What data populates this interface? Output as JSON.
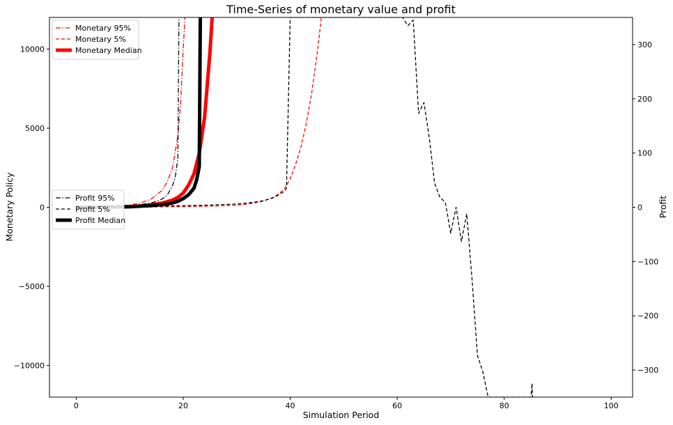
{
  "chart_data": {
    "type": "line",
    "title": "Time-Series of monetary value and profit",
    "xlabel": "Simulation Period",
    "ylabel_left": "Monetary Policy",
    "ylabel_right": "Profit",
    "xlim": [
      -5,
      104
    ],
    "ylim_left": [
      -12000,
      12000
    ],
    "ylim_right": [
      -350,
      350
    ],
    "x_ticks": [
      0,
      20,
      40,
      60,
      80,
      100
    ],
    "y_left_ticks": [
      -10000,
      -5000,
      0,
      5000,
      10000
    ],
    "y_left_tick_labels": [
      "−10000",
      "−5000",
      "0",
      "5000",
      "10000"
    ],
    "y_right_ticks": [
      -300,
      -200,
      -100,
      0,
      100,
      200,
      300
    ],
    "y_right_tick_labels": [
      "−300",
      "−200",
      "−100",
      "0",
      "100",
      "200",
      "300"
    ],
    "grid": false,
    "legend_monetary_placement": "top-left",
    "legend_profit_placement": "center-left",
    "series": [
      {
        "name": "Monetary 95%",
        "axis": "left",
        "color": "#ff0000",
        "dash": "dashdot",
        "width": 1.3,
        "x": [
          0,
          5,
          8,
          10,
          12,
          14,
          16,
          17,
          18,
          19,
          19.5,
          20,
          20.5
        ],
        "y": [
          0,
          30,
          80,
          150,
          270,
          520,
          1050,
          1600,
          2500,
          4500,
          6500,
          10000,
          13000
        ]
      },
      {
        "name": "Monetary 5%",
        "axis": "left",
        "color": "#ff0000",
        "dash": "dashed",
        "width": 1.3,
        "x": [
          0,
          10,
          20,
          25,
          30,
          33,
          35,
          37,
          38,
          39,
          40,
          41,
          42,
          43,
          44,
          45,
          46
        ],
        "y": [
          0,
          10,
          40,
          70,
          130,
          250,
          400,
          650,
          880,
          1200,
          1800,
          2700,
          3800,
          5300,
          7200,
          9600,
          12500
        ]
      },
      {
        "name": "Monetary Median",
        "axis": "left",
        "color": "#ff0000",
        "dash": "solid",
        "width": 5,
        "x": [
          0,
          5,
          10,
          12,
          14,
          16,
          18,
          19,
          20,
          21,
          22,
          23,
          24,
          25,
          25.5
        ],
        "y": [
          0,
          10,
          40,
          80,
          150,
          260,
          450,
          620,
          900,
          1400,
          2100,
          3400,
          5700,
          9800,
          12500
        ]
      },
      {
        "name": "Profit 95%",
        "axis": "right",
        "color": "#000000",
        "dash": "dashdot",
        "width": 1.3,
        "x": [
          0,
          5,
          8,
          10,
          12,
          14,
          15,
          16,
          17,
          18,
          18.5,
          19,
          19.2
        ],
        "y": [
          0,
          1,
          2,
          3,
          5,
          8,
          11,
          15,
          22,
          40,
          55,
          90,
          350
        ]
      },
      {
        "name": "Profit 5%",
        "axis": "right",
        "color": "#000000",
        "dash": "dashed",
        "width": 1.3,
        "x": [
          0,
          10,
          20,
          25,
          30,
          33,
          35,
          37,
          38,
          39,
          39.3,
          40,
          61,
          62,
          63,
          64,
          65,
          66,
          67,
          68,
          69,
          70,
          71,
          72,
          73,
          74,
          75,
          76,
          77,
          79,
          80,
          85,
          85.2,
          85.3
        ],
        "y": [
          0,
          1,
          3,
          4,
          6,
          9,
          12,
          18,
          24,
          30,
          35,
          350,
          350,
          335,
          345,
          173,
          193,
          128,
          44,
          18,
          9,
          -48,
          0,
          -63,
          -12,
          -134,
          -273,
          -303,
          -350,
          -350,
          -350,
          -350,
          -325,
          -350
        ]
      },
      {
        "name": "Profit Median",
        "axis": "right",
        "color": "#000000",
        "dash": "solid",
        "width": 5,
        "x": [
          0,
          5,
          10,
          12,
          14,
          16,
          17,
          18,
          19,
          20,
          21,
          22,
          22.5,
          23,
          23.2
        ],
        "y": [
          0,
          0.5,
          1,
          2,
          3,
          5,
          6,
          8,
          11,
          16,
          23,
          35,
          50,
          75,
          350
        ]
      }
    ]
  }
}
